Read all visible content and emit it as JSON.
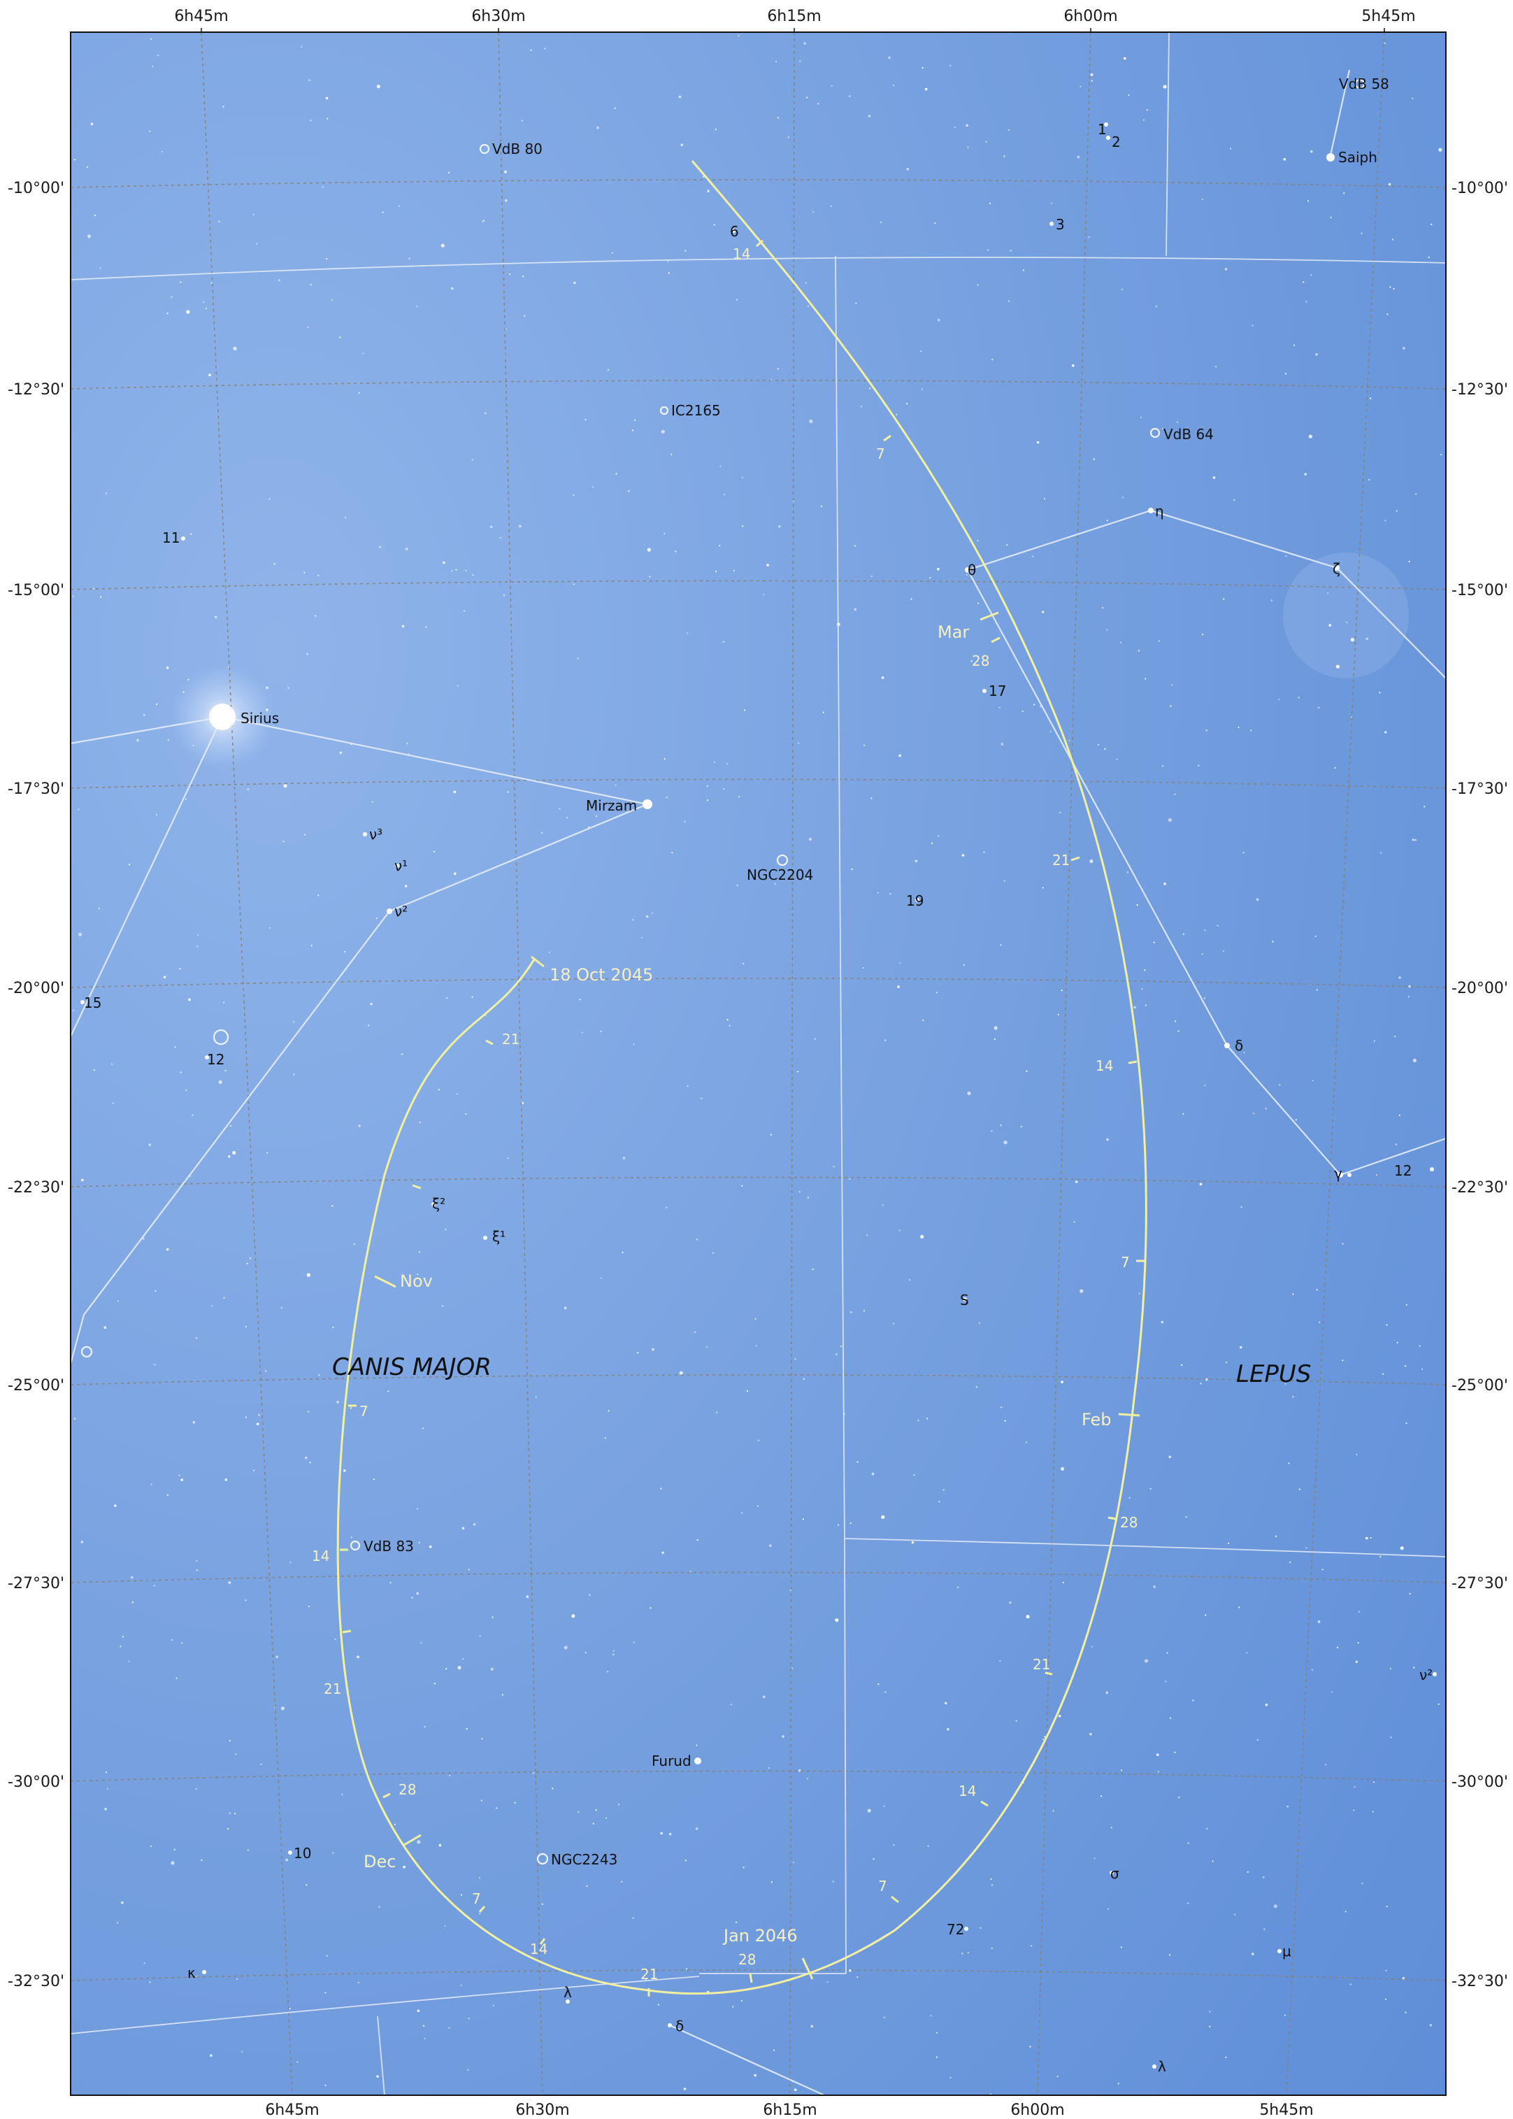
{
  "ra_labels_top": [
    "6h45m",
    "6h30m",
    "6h15m",
    "6h00m",
    "5h45m"
  ],
  "ra_labels_bottom": [
    "6h45m",
    "6h30m",
    "6h15m",
    "6h00m",
    "5h45m"
  ],
  "dec_labels": [
    "-10°00'",
    "-12°30'",
    "-15°00'",
    "-17°30'",
    "-20°00'",
    "-22°30'",
    "-25°00'",
    "-27°30'",
    "-30°00'",
    "-32°30'"
  ],
  "constellations": [
    "CANIS MAJOR",
    "LEPUS"
  ],
  "bright_stars": [
    "Sirius",
    "Mirzam",
    "Saiph",
    "Furud"
  ],
  "objects": [
    "VdB 80",
    "VdB 58",
    "IC2165",
    "VdB 64",
    "NGC2204",
    "VdB 83",
    "NGC2243"
  ],
  "greek_stars": [
    "θ",
    "η",
    "ζ",
    "δ",
    "γ",
    "ν³",
    "ν¹",
    "ν²",
    "ξ²",
    "ξ¹",
    "σ",
    "λ",
    "μ",
    "κ",
    "λ",
    "δ",
    "ν²"
  ],
  "numbered_stars": [
    "1",
    "2",
    "3",
    "6",
    "11",
    "15",
    "12",
    "17",
    "19",
    "S",
    "10",
    "72",
    "12"
  ],
  "path": {
    "start_label": "18 Oct 2045",
    "month_labels": [
      "Nov",
      "Dec",
      "Jan 2046",
      "Feb",
      "Mar"
    ],
    "day_ticks": [
      "21",
      "7",
      "14",
      "21",
      "28",
      "7",
      "14",
      "21",
      "28",
      "7",
      "14",
      "21",
      "28",
      "7",
      "14",
      "21",
      "28",
      "7",
      "14"
    ]
  },
  "colors": {
    "sky": "#6f9bde",
    "grid": "#8a7f6a",
    "constellation_lines": "#dfe8f5",
    "path": "#f2f0a0",
    "path_text": "#f6f0c2"
  }
}
